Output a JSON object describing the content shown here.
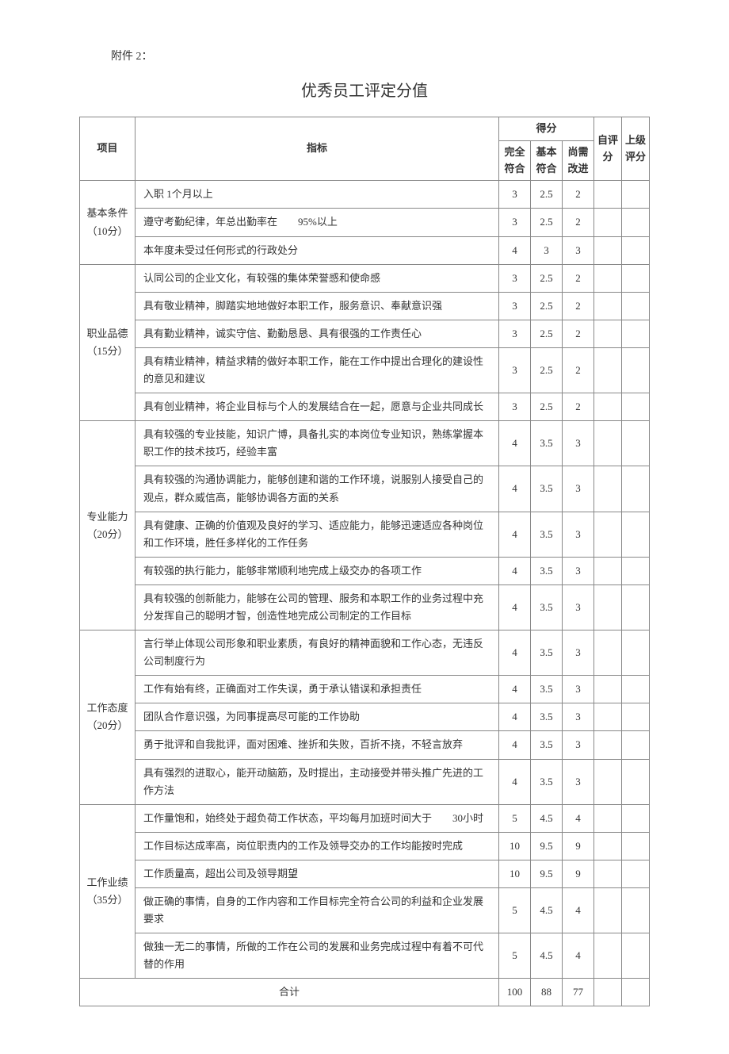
{
  "attachment_label": "附件 2：",
  "title": "优秀员工评定分值",
  "headers": {
    "project": "项目",
    "indicator": "指标",
    "score_group": "得分",
    "full_match": "完全符合",
    "basic_match": "基本符合",
    "need_improve": "尚需改进",
    "self_score": "自评分",
    "superior_score": "上级评分"
  },
  "categories": [
    {
      "name": "基本条件（10分）",
      "rows": [
        {
          "indicator": "入职 1个月以上",
          "full": "3",
          "basic": "2.5",
          "need": "2"
        },
        {
          "indicator": "遵守考勤纪律，年总出勤率在　　95%以上",
          "full": "3",
          "basic": "2.5",
          "need": "2"
        },
        {
          "indicator": "本年度未受过任何形式的行政处分",
          "full": "4",
          "basic": "3",
          "need": "3"
        }
      ]
    },
    {
      "name": "职业品德（15分）",
      "rows": [
        {
          "indicator": "认同公司的企业文化，有较强的集体荣誉感和使命感",
          "full": "3",
          "basic": "2.5",
          "need": "2"
        },
        {
          "indicator": "具有敬业精神，脚踏实地地做好本职工作，服务意识、奉献意识强",
          "full": "3",
          "basic": "2.5",
          "need": "2"
        },
        {
          "indicator": "具有勤业精神，诚实守信、勤勤恳恳、具有很强的工作责任心",
          "full": "3",
          "basic": "2.5",
          "need": "2"
        },
        {
          "indicator": "具有精业精神，精益求精的做好本职工作，能在工作中提出合理化的建设性的意见和建议",
          "full": "3",
          "basic": "2.5",
          "need": "2"
        },
        {
          "indicator": "具有创业精神，将企业目标与个人的发展结合在一起，愿意与企业共同成长",
          "full": "3",
          "basic": "2.5",
          "need": "2"
        }
      ]
    },
    {
      "name": "专业能力（20分）",
      "rows": [
        {
          "indicator": "具有较强的专业技能，知识广博，具备扎实的本岗位专业知识，熟练掌握本职工作的技术技巧，经验丰富",
          "full": "4",
          "basic": "3.5",
          "need": "3"
        },
        {
          "indicator": "具有较强的沟通协调能力，能够创建和谐的工作环境，说服别人接受自己的观点，群众威信高，能够协调各方面的关系",
          "full": "4",
          "basic": "3.5",
          "need": "3"
        },
        {
          "indicator": "具有健康、正确的价值观及良好的学习、适应能力，能够迅速适应各种岗位和工作环境，胜任多样化的工作任务",
          "full": "4",
          "basic": "3.5",
          "need": "3"
        },
        {
          "indicator": "有较强的执行能力，能够非常顺利地完成上级交办的各项工作",
          "full": "4",
          "basic": "3.5",
          "need": "3"
        },
        {
          "indicator": "具有较强的创新能力，能够在公司的管理、服务和本职工作的业务过程中充分发挥自己的聪明才智，创造性地完成公司制定的工作目标",
          "full": "4",
          "basic": "3.5",
          "need": "3"
        }
      ]
    },
    {
      "name": "工作态度（20分）",
      "rows": [
        {
          "indicator": "言行举止体现公司形象和职业素质，有良好的精神面貌和工作心态，无违反公司制度行为",
          "full": "4",
          "basic": "3.5",
          "need": "3"
        },
        {
          "indicator": "工作有始有终，正确面对工作失误，勇于承认错误和承担责任",
          "full": "4",
          "basic": "3.5",
          "need": "3"
        },
        {
          "indicator": "团队合作意识强，为同事提高尽可能的工作协助",
          "full": "4",
          "basic": "3.5",
          "need": "3"
        },
        {
          "indicator": "勇于批评和自我批评，面对困难、挫折和失败，百折不挠，不轻言放弃",
          "full": "4",
          "basic": "3.5",
          "need": "3"
        },
        {
          "indicator": "具有强烈的进取心，能开动脑筋，及时提出，主动接受并带头推广先进的工作方法",
          "full": "4",
          "basic": "3.5",
          "need": "3"
        }
      ]
    },
    {
      "name": "工作业绩（35分）",
      "rows": [
        {
          "indicator": "工作量饱和，始终处于超负荷工作状态，平均每月加班时间大于　　30小时",
          "full": "5",
          "basic": "4.5",
          "need": "4"
        },
        {
          "indicator": "工作目标达成率高，岗位职责内的工作及领导交办的工作均能按时完成",
          "full": "10",
          "basic": "9.5",
          "need": "9"
        },
        {
          "indicator": "工作质量高，超出公司及领导期望",
          "full": "10",
          "basic": "9.5",
          "need": "9"
        },
        {
          "indicator": "做正确的事情，自身的工作内容和工作目标完全符合公司的利益和企业发展要求",
          "full": "5",
          "basic": "4.5",
          "need": "4"
        },
        {
          "indicator": "做独一无二的事情，所做的工作在公司的发展和业务完成过程中有着不可代替的作用",
          "full": "5",
          "basic": "4.5",
          "need": "4"
        }
      ]
    }
  ],
  "total": {
    "label": "合计",
    "full": "100",
    "basic": "88",
    "need": "77"
  }
}
